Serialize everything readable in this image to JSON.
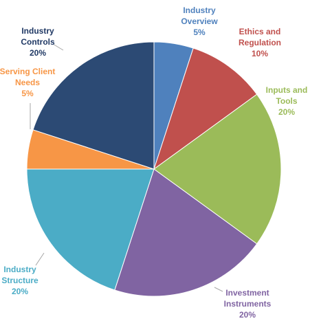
{
  "chart_data": {
    "type": "pie",
    "categories": [
      "Industry Overview",
      "Ethics and Regulation",
      "Inputs and Tools",
      "Investment Instruments",
      "Industry Structure",
      "Serving Client Needs",
      "Industry Controls"
    ],
    "values": [
      5,
      10,
      20,
      20,
      20,
      5,
      20
    ],
    "value_labels": [
      "5%",
      "10%",
      "20%",
      "20%",
      "20%",
      "5%",
      "20%"
    ],
    "colors": [
      "#4f81bd",
      "#c0504d",
      "#9bbb59",
      "#8064a2",
      "#4bacc6",
      "#f79646",
      "#2c4a74"
    ],
    "label_colors": [
      "#4f81bd",
      "#c0504d",
      "#9bbb59",
      "#8064a2",
      "#4bacc6",
      "#f79646",
      "#1f3864"
    ]
  }
}
